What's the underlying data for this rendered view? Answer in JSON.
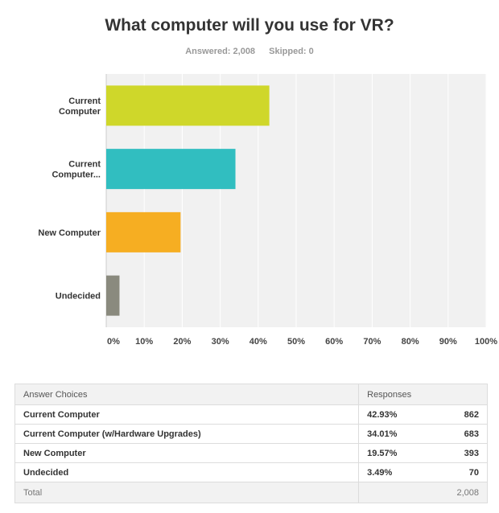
{
  "chart_data": {
    "type": "bar",
    "orientation": "horizontal",
    "title": "What computer will you use for VR?",
    "categories": [
      "Current\nComputer",
      "Current\nComputer...",
      "New Computer",
      "Undecided"
    ],
    "values": [
      42.93,
      34.01,
      19.57,
      3.49
    ],
    "colors": [
      "#cfd72a",
      "#31bec0",
      "#f6ae22",
      "#8a8a7e"
    ],
    "xticks": [
      "0%",
      "10%",
      "20%",
      "30%",
      "40%",
      "50%",
      "60%",
      "70%",
      "80%",
      "90%",
      "100%"
    ],
    "xlim": [
      0,
      100
    ],
    "grid": true,
    "legend": "none"
  },
  "survey": {
    "answered_label": "Answered: 2,008",
    "skipped_label": "Skipped: 0"
  },
  "table": {
    "header_choice": "Answer Choices",
    "header_responses": "Responses",
    "rows": [
      {
        "choice": "Current Computer",
        "percent": "42.93%",
        "count": "862"
      },
      {
        "choice": "Current Computer (w/Hardware Upgrades)",
        "percent": "34.01%",
        "count": "683"
      },
      {
        "choice": "New Computer",
        "percent": "19.57%",
        "count": "393"
      },
      {
        "choice": "Undecided",
        "percent": "3.49%",
        "count": "70"
      }
    ],
    "total_label": "Total",
    "total_count": "2,008"
  }
}
